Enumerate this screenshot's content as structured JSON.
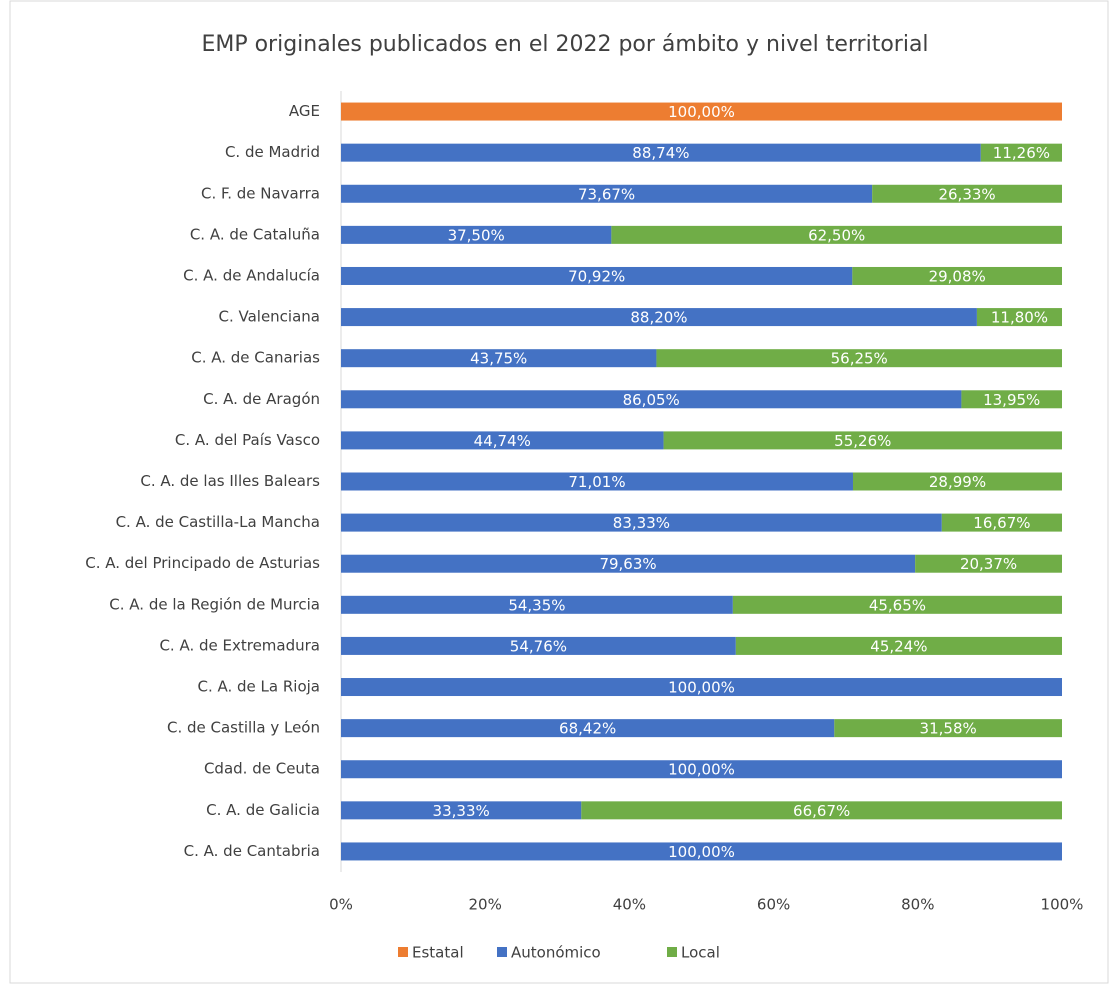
{
  "chart_data": {
    "type": "stacked_bar_horizontal",
    "title": "EMP originales publicados en el 2022 por ámbito y nivel territorial",
    "categories": [
      "AGE",
      "C. de Madrid",
      "C. F. de Navarra",
      "C. A. de Cataluña",
      "C. A. de Andalucía",
      "C. Valenciana",
      "C. A. de Canarias",
      "C. A. de Aragón",
      "C. A. del País Vasco",
      "C. A. de las Illes Balears",
      "C. A. de Castilla-La Mancha",
      "C. A. del Principado de Asturias",
      "C. A. de la Región de Murcia",
      "C. A. de Extremadura",
      "C. A. de La Rioja",
      "C. de Castilla y León",
      "Cdad. de Ceuta",
      "C. A. de Galicia",
      "C. A. de Cantabria"
    ],
    "series": [
      {
        "name": "Estatal",
        "color": "#ed7d31",
        "values": [
          100,
          null,
          null,
          null,
          null,
          null,
          null,
          null,
          null,
          null,
          null,
          null,
          null,
          null,
          null,
          null,
          null,
          null,
          null
        ],
        "value_labels": [
          "100,00%",
          null,
          null,
          null,
          null,
          null,
          null,
          null,
          null,
          null,
          null,
          null,
          null,
          null,
          null,
          null,
          null,
          null,
          null
        ]
      },
      {
        "name": "Autonómico",
        "color": "#4472c4",
        "values": [
          null,
          88.74,
          73.67,
          37.5,
          70.92,
          88.2,
          43.75,
          86.05,
          44.74,
          71.01,
          83.33,
          79.63,
          54.35,
          54.76,
          100,
          68.42,
          100,
          33.33,
          100
        ],
        "value_labels": [
          null,
          "88,74%",
          "73,67%",
          "37,50%",
          "70,92%",
          "88,20%",
          "43,75%",
          "86,05%",
          "44,74%",
          "71,01%",
          "83,33%",
          "79,63%",
          "54,35%",
          "54,76%",
          "100,00%",
          "68,42%",
          "100,00%",
          "33,33%",
          "100,00%"
        ]
      },
      {
        "name": "Local",
        "color": "#70ad47",
        "values": [
          null,
          11.26,
          26.33,
          62.5,
          29.08,
          11.8,
          56.25,
          13.95,
          55.26,
          28.99,
          16.67,
          20.37,
          45.65,
          45.24,
          null,
          31.58,
          null,
          66.67,
          null
        ],
        "value_labels": [
          null,
          "11,26%",
          "26,33%",
          "62,50%",
          "29,08%",
          "11,80%",
          "56,25%",
          "13,95%",
          "55,26%",
          "28,99%",
          "16,67%",
          "20,37%",
          "45,65%",
          "45,24%",
          null,
          "31,58%",
          null,
          "66,67%",
          null
        ]
      }
    ],
    "xlim": [
      0,
      100
    ],
    "xticks": [
      {
        "value": 0,
        "label": "0%"
      },
      {
        "value": 20,
        "label": "20%"
      },
      {
        "value": 40,
        "label": "40%"
      },
      {
        "value": 60,
        "label": "60%"
      },
      {
        "value": 80,
        "label": "80%"
      },
      {
        "value": 100,
        "label": "100%"
      }
    ],
    "grid": false,
    "legend": "bottom"
  }
}
